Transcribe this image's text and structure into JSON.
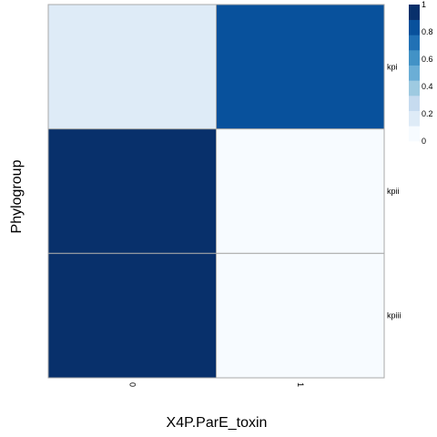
{
  "chart_data": {
    "type": "heatmap",
    "xlabel": "X4P.ParE_toxin",
    "ylabel": "Phylogroup",
    "x_categories": [
      "0",
      "1"
    ],
    "y_categories": [
      "kpi",
      "kpii",
      "kpiii"
    ],
    "values": [
      [
        0.2,
        0.8
      ],
      [
        1.0,
        0.0
      ],
      [
        1.0,
        0.0
      ]
    ],
    "color_scale": {
      "min": 0,
      "max": 1,
      "ticks": [
        "0",
        "0.2",
        "0.4",
        "0.6",
        "0.8",
        "1"
      ],
      "colors": [
        "#f7fbff",
        "#deebf7",
        "#c6dbef",
        "#9ecae1",
        "#6baed6",
        "#4292c6",
        "#2171b5",
        "#08519c",
        "#08306b"
      ]
    },
    "legend_position": "right"
  }
}
